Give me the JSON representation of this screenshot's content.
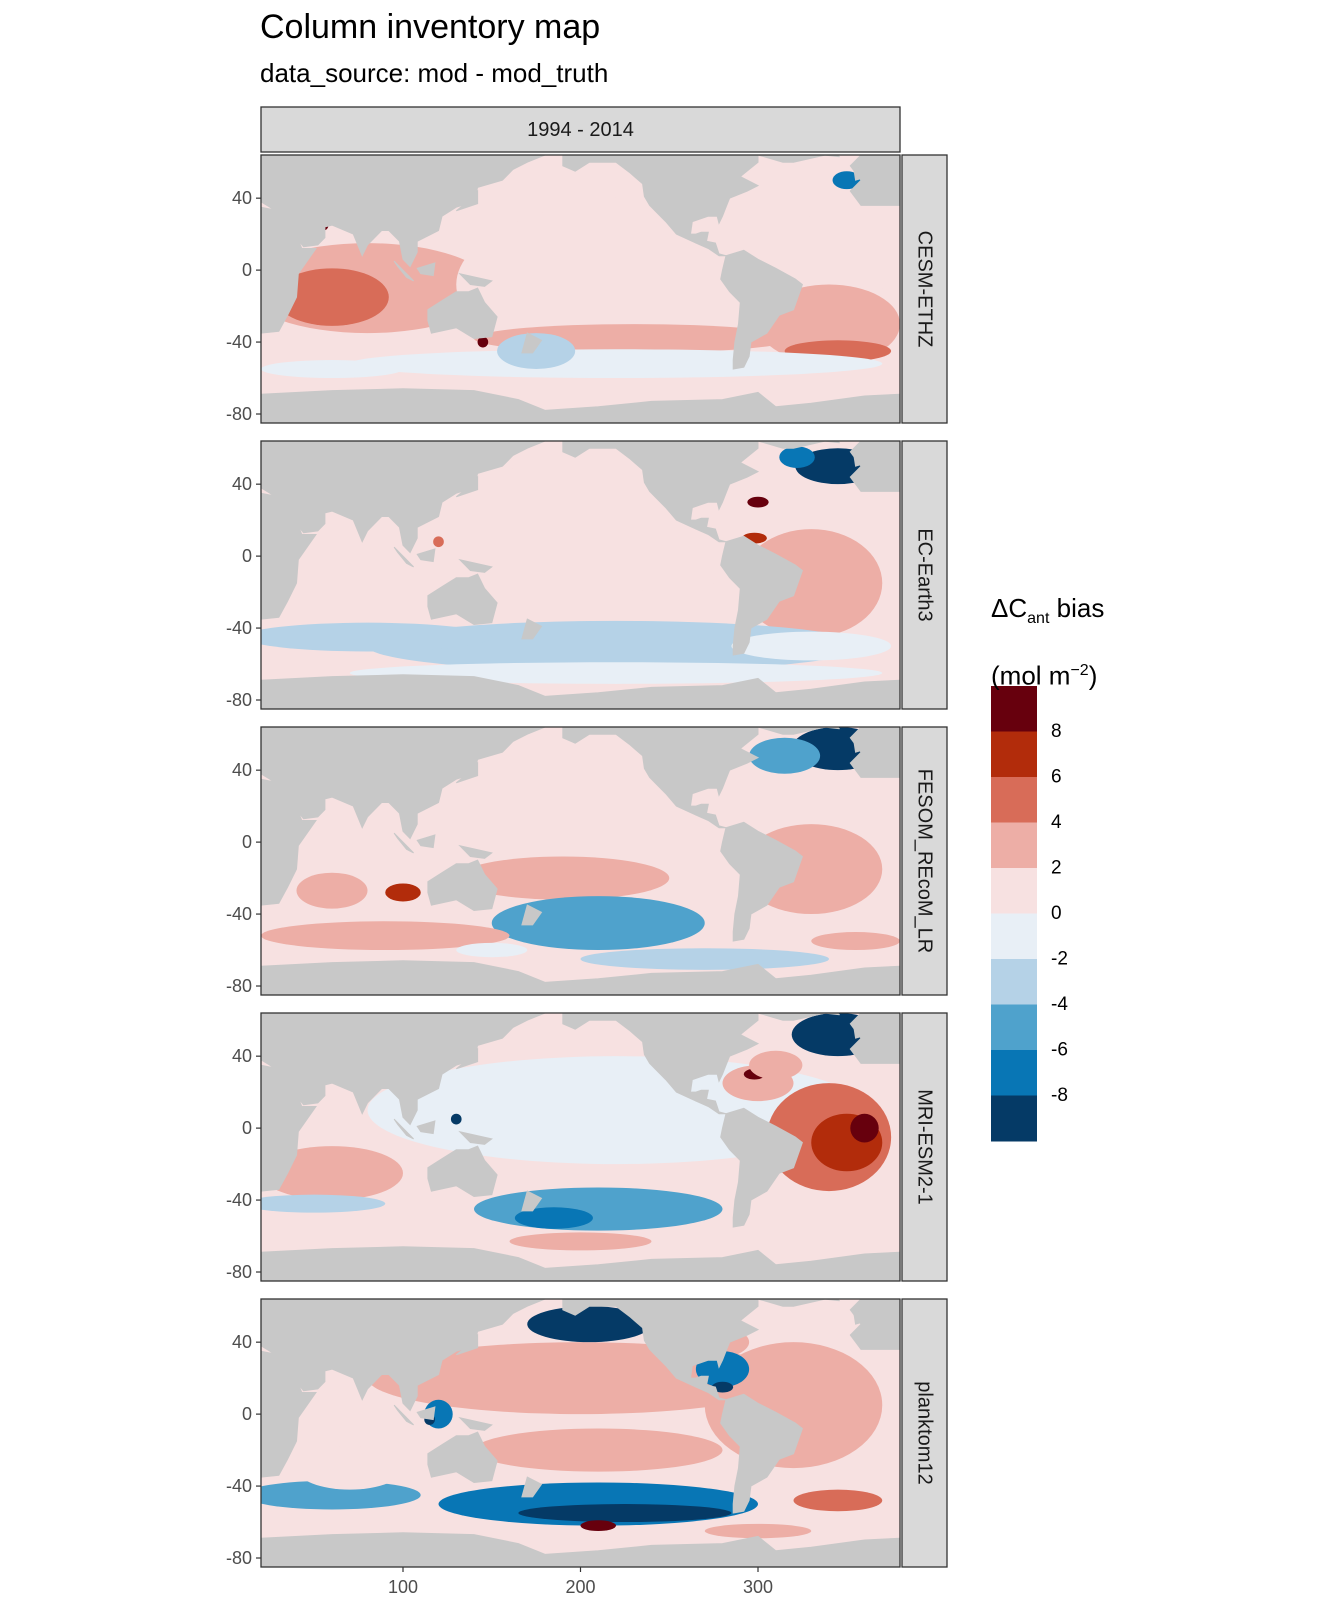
{
  "chart_data": {
    "type": "heatmap",
    "title": "Column inventory map",
    "subtitle": "data_source: mod - mod_truth",
    "column_strip": "1994 - 2014",
    "panels": [
      {
        "name": "CESM-ETHZ"
      },
      {
        "name": "EC-Earth3"
      },
      {
        "name": "FESOM_REcoM_LR"
      },
      {
        "name": "MRI-ESM2-1"
      },
      {
        "name": "planktom12"
      }
    ],
    "x_ticks": [
      "100",
      "200",
      "300"
    ],
    "x_tick_values": [
      100,
      200,
      300
    ],
    "xlim": [
      20,
      380
    ],
    "y_ticks": [
      "40",
      "0",
      "-40",
      "-80"
    ],
    "y_tick_values": [
      40,
      0,
      -40,
      -80
    ],
    "ylim": [
      -85,
      64
    ],
    "legend": {
      "title_main": "ΔC",
      "title_sub": "ant",
      "title_rest": " bias",
      "unit_pre": "(mol m",
      "unit_sup": "−2",
      "unit_post": ")",
      "placement": "right",
      "tick_labels": [
        "8",
        "6",
        "4",
        "2",
        "0",
        "-2",
        "-4",
        "-6",
        "-8"
      ],
      "tick_values": [
        8,
        6,
        4,
        2,
        0,
        -2,
        -4,
        -6,
        -8
      ],
      "breaks": [
        10,
        8,
        6,
        4,
        2,
        0,
        -2,
        -4,
        -6,
        -8,
        -10
      ],
      "colors": [
        "#67000d",
        "#b22c0b",
        "#d86c58",
        "#edaea6",
        "#f7e1e1",
        "#e8eff6",
        "#b5d2e7",
        "#4fa2cc",
        "#0876b5",
        "#053a66"
      ]
    },
    "land_color": "#c8c8c8",
    "grid": false
  }
}
